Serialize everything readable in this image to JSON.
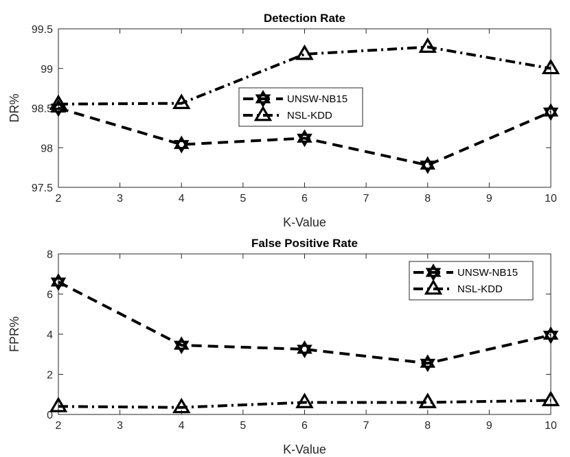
{
  "chart_data": [
    {
      "type": "line",
      "title": "Detection Rate",
      "xlabel": "K-Value",
      "ylabel": "DR%",
      "xlim": [
        2,
        10
      ],
      "ylim": [
        97.5,
        99.5
      ],
      "xticks": [
        2,
        3,
        4,
        5,
        6,
        7,
        8,
        9,
        10
      ],
      "yticks": [
        97.5,
        98,
        98.5,
        99,
        99.5
      ],
      "ytick_labels": [
        "97.5",
        "98",
        "98.5",
        "99",
        "99.5"
      ],
      "x": [
        2,
        4,
        6,
        8,
        10
      ],
      "legend_position": "center",
      "series": [
        {
          "name": "UNSW-NB15",
          "values": [
            98.5,
            98.04,
            98.12,
            97.78,
            98.45
          ],
          "linestyle": "dashed",
          "marker": "hexagram"
        },
        {
          "name": "NSL-KDD",
          "values": [
            98.55,
            98.56,
            99.18,
            99.27,
            99.0
          ],
          "linestyle": "dash-dot",
          "marker": "triangle"
        }
      ]
    },
    {
      "type": "line",
      "title": "False Positive Rate",
      "xlabel": "K-Value",
      "ylabel": "FPR%",
      "xlim": [
        2,
        10
      ],
      "ylim": [
        0,
        8
      ],
      "xticks": [
        2,
        3,
        4,
        5,
        6,
        7,
        8,
        9,
        10
      ],
      "yticks": [
        0,
        2,
        4,
        6,
        8
      ],
      "ytick_labels": [
        "0",
        "2",
        "4",
        "6",
        "8"
      ],
      "x": [
        2,
        4,
        6,
        8,
        10
      ],
      "legend_position": "top-right",
      "series": [
        {
          "name": "UNSW-NB15",
          "values": [
            6.6,
            3.45,
            3.25,
            2.55,
            3.95
          ],
          "linestyle": "dashed",
          "marker": "hexagram"
        },
        {
          "name": "NSL-KDD",
          "values": [
            0.4,
            0.35,
            0.6,
            0.6,
            0.7
          ],
          "linestyle": "dash-dot",
          "marker": "triangle"
        }
      ]
    }
  ]
}
